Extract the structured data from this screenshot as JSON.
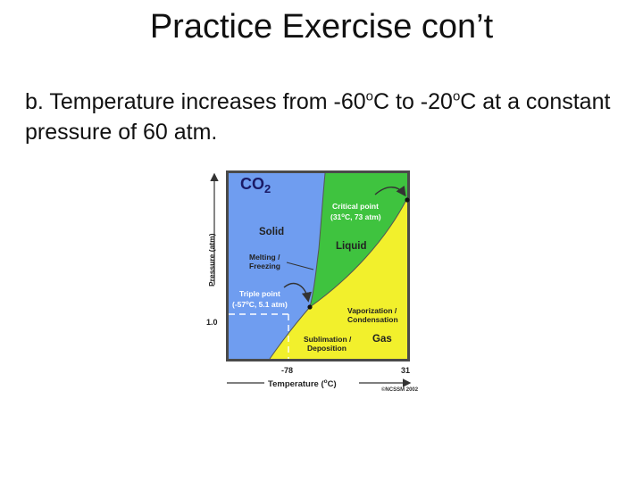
{
  "slide": {
    "title": "Practice Exercise con’t",
    "body_pre": "b. Temperature increases from -60",
    "body_sup1": "o",
    "body_mid": "C to -20",
    "body_sup2": "o",
    "body_post": "C at a constant pressure of 60 atm."
  },
  "diagram": {
    "compound": "CO",
    "compound_sub": "2",
    "y_axis_label": "Pressure (atm)",
    "x_axis_label_pre": "Temperature (",
    "x_axis_label_sup": "o",
    "x_axis_label_post": "C)",
    "y_tick": "1.0",
    "x_tick_1": "-78",
    "x_tick_2": "31",
    "regions": {
      "solid": "Solid",
      "liquid": "Liquid",
      "gas": "Gas"
    },
    "critical_point_line1": "Critical point",
    "critical_point_line2": "(31",
    "critical_point_sup": "o",
    "critical_point_line2_end": "C, 73 atm)",
    "triple_point_line1": "Triple point",
    "triple_point_line2": "(-57",
    "triple_point_sup": "o",
    "triple_point_line2_end": "C, 5.1 atm)",
    "melting_line1": "Melting /",
    "melting_line2": "Freezing",
    "vaporization_line1": "Vaporization /",
    "vaporization_line2": "Condensation",
    "sublimation_line1": "Sublimation /",
    "sublimation_line2": "Deposition",
    "copyright": "©NCSSM 2002",
    "colors": {
      "solid": "#6f9df0",
      "liquid": "#3fc33f",
      "gas": "#f2f02c",
      "text_dark": "#222222",
      "compound_text": "#1a1a66"
    }
  }
}
